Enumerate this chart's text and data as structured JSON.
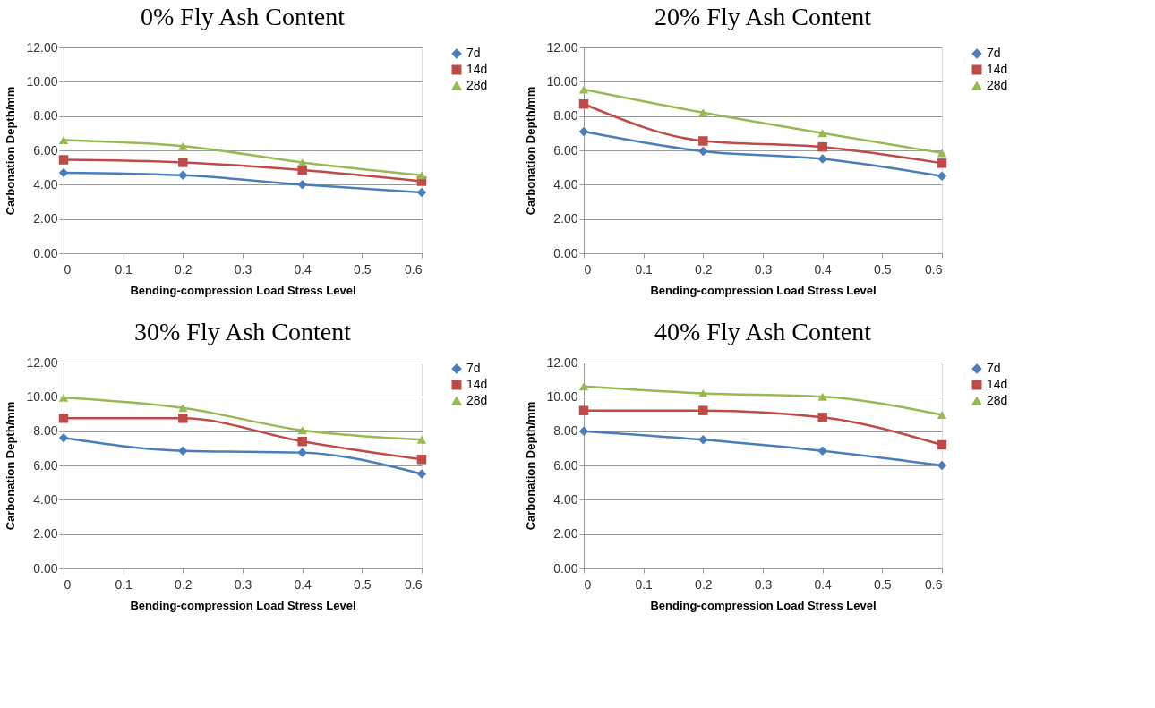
{
  "chart_data": [
    {
      "type": "line",
      "title": "0% Fly Ash Content",
      "xlabel": "Bending-compression Load Stress Level",
      "ylabel": "Carbonation Depth/mm",
      "x": [
        0,
        0.2,
        0.4,
        0.6
      ],
      "xlim": [
        0,
        0.6
      ],
      "xticks": [
        0,
        0.1,
        0.2,
        0.3,
        0.4,
        0.5,
        0.6
      ],
      "ylim": [
        0,
        12
      ],
      "yticks": [
        {
          "value": 0,
          "label": "0.00"
        },
        {
          "value": 2,
          "label": "2.00"
        },
        {
          "value": 4,
          "label": "4.00"
        },
        {
          "value": 6,
          "label": "6.00"
        },
        {
          "value": 8,
          "label": "8.00"
        },
        {
          "value": 10,
          "label": "10.00"
        },
        {
          "value": 12,
          "label": "12.00"
        }
      ],
      "grid": "y",
      "legend": "right",
      "series": [
        {
          "name": "7d",
          "color": "#4a7ebb",
          "marker": "diamond",
          "values": [
            4.7,
            4.55,
            4.0,
            3.55
          ]
        },
        {
          "name": "14d",
          "color": "#be4b48",
          "marker": "square",
          "values": [
            5.45,
            5.3,
            4.85,
            4.2
          ]
        },
        {
          "name": "28d",
          "color": "#98b954",
          "marker": "triangle",
          "values": [
            6.6,
            6.25,
            5.3,
            4.55
          ]
        }
      ]
    },
    {
      "type": "line",
      "title": "20% Fly Ash Content",
      "xlabel": "Bending-compression Load Stress Level",
      "ylabel": "Carbonation Depth/mm",
      "x": [
        0,
        0.2,
        0.4,
        0.6
      ],
      "xlim": [
        0,
        0.6
      ],
      "xticks": [
        0,
        0.1,
        0.2,
        0.3,
        0.4,
        0.5,
        0.6
      ],
      "ylim": [
        0,
        12
      ],
      "yticks": [
        {
          "value": 0,
          "label": "0.00"
        },
        {
          "value": 2,
          "label": "2.00"
        },
        {
          "value": 4,
          "label": "4.00"
        },
        {
          "value": 6,
          "label": "6.00"
        },
        {
          "value": 8,
          "label": "8.00"
        },
        {
          "value": 10,
          "label": "10.00"
        },
        {
          "value": 12,
          "label": "12.00"
        }
      ],
      "grid": "y",
      "legend": "right",
      "series": [
        {
          "name": "7d",
          "color": "#4a7ebb",
          "marker": "diamond",
          "values": [
            7.1,
            5.95,
            5.5,
            4.5
          ]
        },
        {
          "name": "14d",
          "color": "#be4b48",
          "marker": "square",
          "values": [
            8.7,
            6.55,
            6.2,
            5.25
          ]
        },
        {
          "name": "28d",
          "color": "#98b954",
          "marker": "triangle",
          "values": [
            9.55,
            8.2,
            7.0,
            5.85
          ]
        }
      ]
    },
    {
      "type": "line",
      "title": "30% Fly Ash Content",
      "xlabel": "Bending-compression Load Stress Level",
      "ylabel": "Carbonation Depth/mm",
      "x": [
        0,
        0.2,
        0.4,
        0.6
      ],
      "xlim": [
        0,
        0.6
      ],
      "xticks": [
        0,
        0.1,
        0.2,
        0.3,
        0.4,
        0.5,
        0.6
      ],
      "ylim": [
        0,
        12
      ],
      "yticks": [
        {
          "value": 0,
          "label": "0.00"
        },
        {
          "value": 2,
          "label": "2.00"
        },
        {
          "value": 4,
          "label": "4.00"
        },
        {
          "value": 6,
          "label": "6.00"
        },
        {
          "value": 8,
          "label": "8.00"
        },
        {
          "value": 10,
          "label": "10.00"
        },
        {
          "value": 12,
          "label": "12.00"
        }
      ],
      "grid": "y",
      "legend": "right",
      "series": [
        {
          "name": "7d",
          "color": "#4a7ebb",
          "marker": "diamond",
          "values": [
            7.6,
            6.85,
            6.75,
            5.5
          ]
        },
        {
          "name": "14d",
          "color": "#be4b48",
          "marker": "square",
          "values": [
            8.75,
            8.75,
            7.4,
            6.35
          ]
        },
        {
          "name": "28d",
          "color": "#98b954",
          "marker": "triangle",
          "values": [
            9.95,
            9.35,
            8.05,
            7.5
          ]
        }
      ]
    },
    {
      "type": "line",
      "title": "40% Fly Ash Content",
      "xlabel": "Bending-compression Load Stress Level",
      "ylabel": "Carbonation Depth/mm",
      "x": [
        0,
        0.2,
        0.4,
        0.6
      ],
      "xlim": [
        0,
        0.6
      ],
      "xticks": [
        0,
        0.1,
        0.2,
        0.3,
        0.4,
        0.5,
        0.6
      ],
      "ylim": [
        0,
        12
      ],
      "yticks": [
        {
          "value": 0,
          "label": "0.00"
        },
        {
          "value": 2,
          "label": "2.00"
        },
        {
          "value": 4,
          "label": "4.00"
        },
        {
          "value": 6,
          "label": "6.00"
        },
        {
          "value": 8,
          "label": "8.00"
        },
        {
          "value": 10,
          "label": "10.00"
        },
        {
          "value": 12,
          "label": "12.00"
        }
      ],
      "grid": "y",
      "legend": "right",
      "series": [
        {
          "name": "7d",
          "color": "#4a7ebb",
          "marker": "diamond",
          "values": [
            8.0,
            7.5,
            6.85,
            6.0
          ]
        },
        {
          "name": "14d",
          "color": "#be4b48",
          "marker": "square",
          "values": [
            9.2,
            9.2,
            8.8,
            7.2
          ]
        },
        {
          "name": "28d",
          "color": "#98b954",
          "marker": "triangle",
          "values": [
            10.6,
            10.2,
            10.0,
            8.95
          ]
        }
      ]
    }
  ]
}
